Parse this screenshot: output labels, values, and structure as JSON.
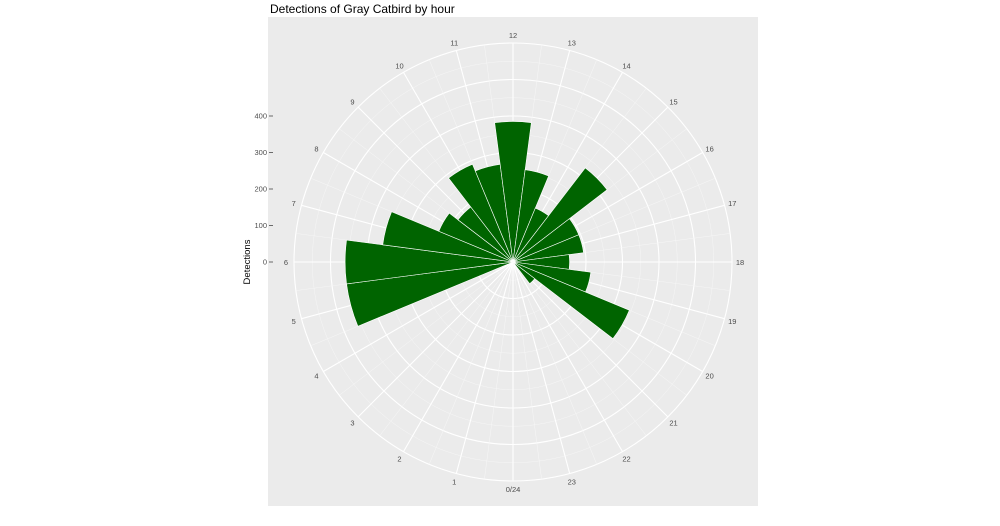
{
  "chart_data": {
    "type": "bar",
    "coord": "polar",
    "title": "Detections of Gray Catbird by hour",
    "xlabel": "",
    "ylabel": "Detections",
    "categories": [
      "0/24",
      "1",
      "2",
      "3",
      "4",
      "5",
      "6",
      "7",
      "8",
      "9",
      "10",
      "11",
      "12",
      "13",
      "14",
      "15",
      "16",
      "17",
      "18",
      "19",
      "20",
      "21",
      "22",
      "23"
    ],
    "values": [
      0,
      0,
      0,
      0,
      0,
      460,
      460,
      360,
      220,
      190,
      290,
      270,
      385,
      255,
      160,
      325,
      195,
      195,
      155,
      215,
      345,
      75,
      0,
      0
    ],
    "y_ticks": [
      0,
      100,
      200,
      300,
      400
    ],
    "ylim": [
      0,
      600
    ],
    "grid": true,
    "bar_color": "#006400",
    "panel_color": "#ebebeb"
  }
}
